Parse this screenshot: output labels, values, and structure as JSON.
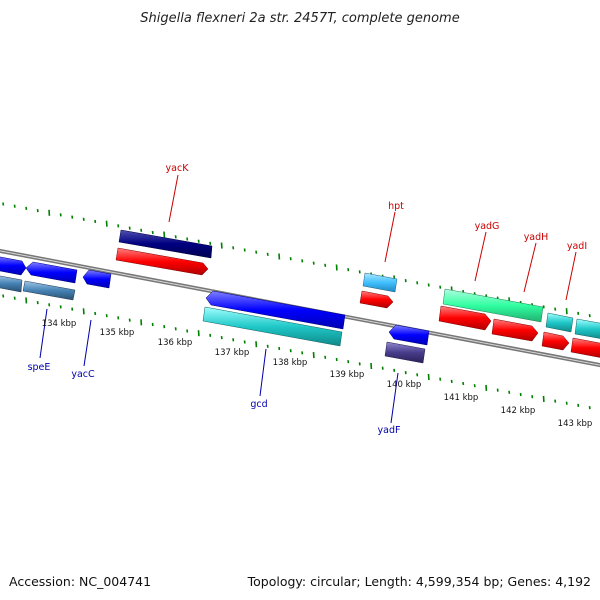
{
  "title": "Shigella flexneri 2a str. 2457T, complete genome",
  "footer": {
    "accession": "Accession: NC_004741",
    "summary": "Topology: circular; Length: 4,599,354 bp; Genes: 4,192"
  },
  "scale_labels": [
    "134 kbp",
    "135 kbp",
    "136 kbp",
    "137 kbp",
    "138 kbp",
    "139 kbp",
    "140 kbp",
    "141 kbp",
    "142 kbp",
    "143 kbp"
  ],
  "gene_labels": {
    "yacK": "yacK",
    "hpt": "hpt",
    "yadG": "yadG",
    "yadH": "yadH",
    "yadI": "yadI",
    "speE": "speE",
    "yacC": "yacC",
    "gcd": "gcd",
    "yadF": "yadF"
  },
  "colors": {
    "forward_cds": "#ff0000",
    "reverse_cds": "#0000ff",
    "navy": "#000080",
    "cyan": "#20c0c0",
    "sky": "#40c0ff",
    "green": "#30ffa0",
    "steel": "#4682b4",
    "slate": "#483d8b",
    "backbone": "#888888",
    "ticks": "#008000"
  }
}
